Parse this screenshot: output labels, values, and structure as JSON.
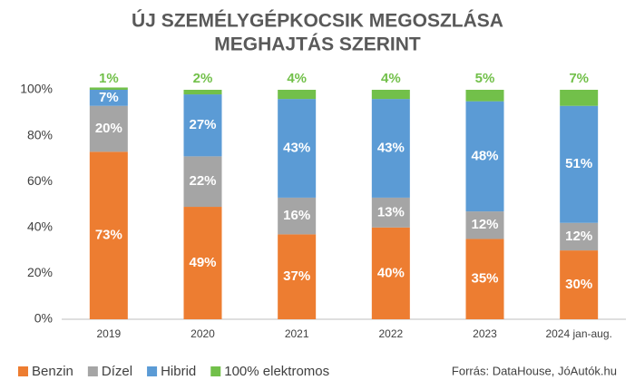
{
  "chart_data": {
    "type": "stacked_bar",
    "title": [
      "ÚJ SZEMÉLYGÉPKOCSIK MEGOSZLÁSA",
      "MEGHAJTÁS SZERINT"
    ],
    "categories": [
      "2019",
      "2020",
      "2021",
      "2022",
      "2023",
      "2024 jan-aug."
    ],
    "series": [
      {
        "name": "Benzin",
        "color": "#ed7d31",
        "values": [
          73,
          49,
          37,
          40,
          35,
          30
        ],
        "value_labels": [
          "73%",
          "49%",
          "37%",
          "40%",
          "35%",
          "30%"
        ]
      },
      {
        "name": "Dízel",
        "color": "#a5a5a5",
        "values": [
          20,
          22,
          16,
          13,
          12,
          12
        ],
        "value_labels": [
          "20%",
          "22%",
          "16%",
          "13%",
          "12%",
          "12%"
        ]
      },
      {
        "name": "Hibrid",
        "color": "#5b9bd5",
        "values": [
          7,
          27,
          43,
          43,
          48,
          51
        ],
        "value_labels": [
          "7%",
          "27%",
          "43%",
          "43%",
          "48%",
          "51%"
        ]
      },
      {
        "name": "100% elektromos",
        "color": "#72c04a",
        "values": [
          1,
          2,
          4,
          4,
          5,
          7
        ],
        "value_labels": [
          "1%",
          "2%",
          "4%",
          "4%",
          "5%",
          "7%"
        ]
      }
    ],
    "ylim": [
      0,
      100
    ],
    "yticks": [
      {
        "value": 0,
        "label": "0%"
      },
      {
        "value": 20,
        "label": "20%"
      },
      {
        "value": 40,
        "label": "40%"
      },
      {
        "value": 60,
        "label": "60%"
      },
      {
        "value": 80,
        "label": "80%"
      },
      {
        "value": 100,
        "label": "100%"
      }
    ],
    "grid": false,
    "legend": "bottom",
    "source": "Forrás: DataHouse, JóAutók.hu"
  }
}
